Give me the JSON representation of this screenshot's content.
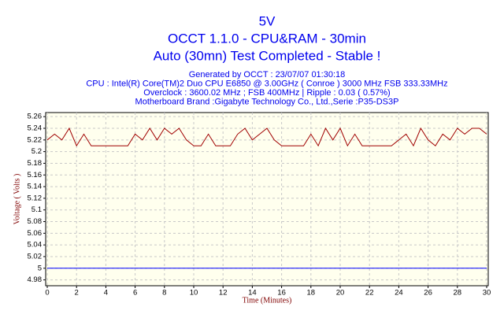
{
  "chart_data": {
    "type": "line",
    "title_lines": [
      "5V",
      "OCCT 1.1.0 - CPU&RAM - 30min",
      "Auto (30mn) Test Completed - Stable !"
    ],
    "info_lines": [
      "Generated by OCCT : 23/07/07 01:30:18",
      "CPU : Intel(R) Core(TM)2 Duo CPU      E6850  @ 3.00GHz ( Conroe ) 3000 MHz FSB 333.33MHz",
      "Overclock : 3600.02 MHz ; FSB 400MHz | Ripple : 0.03 ( 0.57%)",
      "Motherboard Brand :Gigabyte Technology Co., Ltd.,Serie :P35-DS3P"
    ],
    "xlabel": "Time (Minutes)",
    "ylabel": "Voltage ( Volts )",
    "xlim": [
      0,
      30
    ],
    "ylim": [
      4.97,
      5.267
    ],
    "xticks": [
      0,
      2,
      4,
      6,
      8,
      10,
      12,
      14,
      16,
      18,
      20,
      22,
      24,
      26,
      28,
      30
    ],
    "yticks": [
      4.98,
      5,
      5.02,
      5.04,
      5.06,
      5.08,
      5.1,
      5.12,
      5.14,
      5.16,
      5.18,
      5.2,
      5.22,
      5.24,
      5.26
    ],
    "grid": true,
    "series": [
      {
        "color": "#a00000",
        "x": [
          0,
          0.5,
          1,
          1.5,
          2,
          2.5,
          3,
          3.5,
          4,
          4.5,
          5,
          5.5,
          6,
          6.5,
          7,
          7.5,
          8,
          8.5,
          9,
          9.5,
          10,
          10.5,
          11,
          11.5,
          12,
          12.5,
          13,
          13.5,
          14,
          14.5,
          15,
          15.5,
          16,
          16.5,
          17,
          17.5,
          18,
          18.5,
          19,
          19.5,
          20,
          20.5,
          21,
          21.5,
          22,
          22.5,
          23,
          23.5,
          24,
          24.5,
          25,
          25.5,
          26,
          26.5,
          27,
          27.5,
          28,
          28.5,
          29,
          29.5,
          30
        ],
        "values": [
          5.22,
          5.23,
          5.22,
          5.24,
          5.21,
          5.23,
          5.21,
          5.21,
          5.21,
          5.21,
          5.21,
          5.21,
          5.23,
          5.22,
          5.24,
          5.22,
          5.24,
          5.23,
          5.24,
          5.22,
          5.21,
          5.21,
          5.23,
          5.21,
          5.21,
          5.21,
          5.23,
          5.24,
          5.22,
          5.23,
          5.24,
          5.22,
          5.21,
          5.21,
          5.21,
          5.21,
          5.23,
          5.21,
          5.24,
          5.22,
          5.24,
          5.21,
          5.23,
          5.21,
          5.21,
          5.21,
          5.21,
          5.21,
          5.22,
          5.23,
          5.21,
          5.24,
          5.22,
          5.21,
          5.23,
          5.22,
          5.24,
          5.23,
          5.24,
          5.24,
          5.23
        ]
      },
      {
        "color": "#0000ff",
        "x": [
          0,
          30
        ],
        "values": [
          5,
          5
        ]
      }
    ]
  }
}
